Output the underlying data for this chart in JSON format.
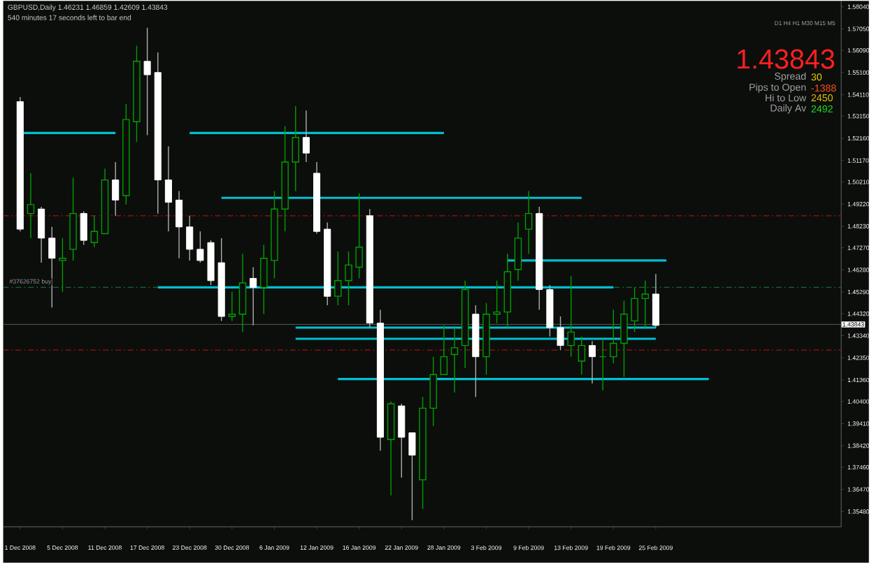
{
  "chart_data": {
    "type": "candlestick",
    "categories": [
      "1 Dec 2008",
      null,
      null,
      null,
      "5 Dec 2008",
      null,
      null,
      null,
      "11 Dec 2008",
      null,
      null,
      null,
      "17 Dec 2008",
      null,
      null,
      null,
      "23 Dec 2008",
      null,
      null,
      null,
      "30 Dec 2008",
      null,
      null,
      null,
      "6 Jan 2009",
      null,
      null,
      null,
      "12 Jan 2009",
      null,
      null,
      null,
      "16 Jan 2009",
      null,
      null,
      null,
      "22 Jan 2009",
      null,
      null,
      null,
      "28 Jan 2009",
      null,
      null,
      null,
      "3 Feb 2009",
      null,
      null,
      null,
      "9 Feb 2009",
      null,
      null,
      null,
      "13 Feb 2009",
      null,
      null,
      null,
      "19 Feb 2009",
      null,
      null,
      null,
      "25 Feb 2009",
      null,
      null,
      null,
      null,
      null,
      null,
      null,
      null,
      null,
      null,
      null,
      null,
      null,
      null,
      null,
      null,
      null
    ],
    "ohlc": [
      [
        1.538,
        1.54,
        1.48,
        1.481
      ],
      [
        1.488,
        1.506,
        1.477,
        1.492
      ],
      [
        1.49,
        1.491,
        1.466,
        1.477
      ],
      [
        1.477,
        1.482,
        1.446,
        1.468
      ],
      [
        1.467,
        1.477,
        1.453,
        1.468
      ],
      [
        1.472,
        1.504,
        1.467,
        1.488
      ],
      [
        1.488,
        1.489,
        1.474,
        1.476
      ],
      [
        1.475,
        1.487,
        1.473,
        1.48
      ],
      [
        1.479,
        1.508,
        1.479,
        1.503
      ],
      [
        1.503,
        1.511,
        1.487,
        1.494
      ],
      [
        1.496,
        1.537,
        1.492,
        1.53
      ],
      [
        1.529,
        1.563,
        1.52,
        1.556
      ],
      [
        1.556,
        1.571,
        1.523,
        1.55
      ],
      [
        1.551,
        1.56,
        1.488,
        1.503
      ],
      [
        1.503,
        1.518,
        1.48,
        1.493
      ],
      [
        1.494,
        1.498,
        1.468,
        1.482
      ],
      [
        1.482,
        1.487,
        1.467,
        1.472
      ],
      [
        1.472,
        1.48,
        1.466,
        1.467
      ],
      [
        1.475,
        1.476,
        1.456,
        1.458
      ],
      [
        1.466,
        1.477,
        1.44,
        1.442
      ],
      [
        1.442,
        1.453,
        1.44,
        1.443
      ],
      [
        1.443,
        1.47,
        1.435,
        1.457
      ],
      [
        1.459,
        1.464,
        1.438,
        1.455
      ],
      [
        1.455,
        1.474,
        1.443,
        1.468
      ],
      [
        1.467,
        1.498,
        1.459,
        1.49
      ],
      [
        1.49,
        1.527,
        1.48,
        1.511
      ],
      [
        1.511,
        1.536,
        1.498,
        1.522
      ],
      [
        1.522,
        1.534,
        1.511,
        1.515
      ],
      [
        1.506,
        1.511,
        1.479,
        1.48
      ],
      [
        1.481,
        1.484,
        1.447,
        1.451
      ],
      [
        1.451,
        1.471,
        1.447,
        1.458
      ],
      [
        1.458,
        1.471,
        1.447,
        1.465
      ],
      [
        1.464,
        1.497,
        1.459,
        1.473
      ],
      [
        1.487,
        1.49,
        1.437,
        1.439
      ],
      [
        1.439,
        1.445,
        1.382,
        1.388
      ],
      [
        1.387,
        1.404,
        1.362,
        1.403
      ],
      [
        1.402,
        1.403,
        1.37,
        1.388
      ],
      [
        1.39,
        1.39,
        1.351,
        1.38
      ],
      [
        1.369,
        1.406,
        1.356,
        1.401
      ],
      [
        1.401,
        1.424,
        1.393,
        1.416
      ],
      [
        1.416,
        1.438,
        1.416,
        1.424
      ],
      [
        1.425,
        1.437,
        1.408,
        1.428
      ],
      [
        1.429,
        1.458,
        1.419,
        1.454
      ],
      [
        1.443,
        1.447,
        1.406,
        1.424
      ],
      [
        1.424,
        1.448,
        1.416,
        1.443
      ],
      [
        1.443,
        1.458,
        1.439,
        1.444
      ],
      [
        1.444,
        1.47,
        1.437,
        1.462
      ],
      [
        1.463,
        1.484,
        1.458,
        1.477
      ],
      [
        1.481,
        1.498,
        1.47,
        1.488
      ],
      [
        1.488,
        1.491,
        1.445,
        1.454
      ],
      [
        1.454,
        1.456,
        1.433,
        1.437
      ],
      [
        1.437,
        1.442,
        1.427,
        1.429
      ],
      [
        1.429,
        1.46,
        1.424,
        1.435
      ],
      [
        1.422,
        1.433,
        1.416,
        1.429
      ],
      [
        1.429,
        1.431,
        1.412,
        1.424
      ],
      [
        1.424,
        1.432,
        1.409,
        1.424
      ],
      [
        1.424,
        1.445,
        1.421,
        1.43
      ],
      [
        1.43,
        1.449,
        1.415,
        1.443
      ],
      [
        1.44,
        1.455,
        1.435,
        1.45
      ],
      [
        1.45,
        1.458,
        1.437,
        1.452
      ],
      [
        1.452,
        1.461,
        1.437,
        1.438
      ],
      null,
      null,
      null,
      null,
      null,
      null,
      null,
      null,
      null,
      null,
      null,
      null,
      null,
      null,
      null,
      null,
      null
    ],
    "series": [
      {
        "type": "line",
        "color": "#00c0d0",
        "values": [
          1.524,
          1.524,
          1.524,
          1.524,
          1.524,
          1.524,
          1.524,
          1.524,
          1.524,
          1.524,
          null,
          null,
          null,
          null,
          null,
          null,
          null,
          null,
          null,
          null,
          null,
          null,
          null,
          null,
          null,
          null,
          null,
          null,
          null,
          null,
          null,
          null,
          null,
          null,
          null,
          null,
          null,
          null,
          null,
          null,
          null,
          null,
          null,
          null,
          null,
          null,
          null,
          null,
          null,
          null,
          null,
          null,
          null,
          null,
          null,
          null,
          null,
          null,
          null,
          null,
          null,
          null,
          null,
          null,
          null,
          null,
          null,
          null,
          null,
          null,
          null,
          null,
          null,
          null,
          null,
          null,
          null,
          null
        ]
      },
      {
        "type": "line",
        "color": "#00c0d0",
        "values": [
          null,
          null,
          null,
          null,
          null,
          null,
          null,
          null,
          null,
          null,
          null,
          null,
          null,
          null,
          null,
          null,
          1.524,
          1.524,
          1.524,
          1.524,
          1.524,
          1.524,
          1.524,
          1.524,
          1.524,
          1.524,
          1.524,
          1.524,
          1.524,
          1.524,
          1.524,
          1.524,
          1.524,
          1.524,
          1.524,
          1.524,
          1.524,
          1.524,
          1.524,
          1.524,
          1.524,
          null,
          null,
          null,
          null,
          null,
          null,
          null,
          null,
          null,
          null,
          null,
          null,
          null,
          null,
          null,
          null,
          null,
          null,
          null,
          null,
          null,
          null,
          null,
          null,
          null,
          null,
          null,
          null,
          null,
          null,
          null,
          null,
          null,
          null,
          null,
          null,
          null
        ]
      },
      {
        "type": "line",
        "color": "#00c0d0",
        "values": [
          null,
          null,
          null,
          null,
          null,
          null,
          null,
          null,
          null,
          null,
          null,
          null,
          null,
          null,
          null,
          null,
          null,
          null,
          null,
          1.495,
          1.495,
          1.495,
          1.495,
          1.495,
          1.495,
          1.495,
          1.495,
          1.495,
          1.495,
          1.495,
          1.495,
          1.495,
          1.495,
          1.495,
          1.495,
          1.495,
          1.495,
          1.495,
          1.495,
          1.495,
          1.495,
          1.495,
          1.495,
          1.495,
          1.495,
          1.495,
          1.495,
          1.495,
          1.495,
          1.495,
          1.495,
          1.495,
          1.495,
          1.495,
          null,
          null,
          null,
          null,
          null,
          null,
          null,
          null,
          null,
          null,
          null,
          null,
          null,
          null,
          null,
          null,
          null,
          null,
          null,
          null,
          null,
          null,
          null,
          null
        ]
      },
      {
        "type": "line",
        "color": "#00c0d0",
        "values": [
          null,
          null,
          null,
          null,
          null,
          null,
          null,
          null,
          null,
          null,
          null,
          null,
          null,
          null,
          null,
          null,
          null,
          null,
          null,
          null,
          null,
          null,
          null,
          null,
          null,
          null,
          null,
          null,
          null,
          null,
          null,
          null,
          null,
          null,
          null,
          null,
          null,
          null,
          null,
          null,
          null,
          null,
          null,
          null,
          null,
          null,
          1.467,
          1.467,
          1.467,
          1.467,
          1.467,
          1.467,
          1.467,
          1.467,
          1.467,
          1.467,
          1.467,
          1.467,
          1.467,
          1.467,
          1.467,
          1.467,
          null,
          null,
          null,
          null,
          null,
          null,
          null,
          null,
          null,
          null,
          null,
          null,
          null,
          null,
          null,
          null
        ]
      },
      {
        "type": "line",
        "color": "#00c0d0",
        "values": [
          null,
          null,
          null,
          null,
          null,
          null,
          null,
          null,
          null,
          null,
          null,
          null,
          null,
          1.455,
          1.455,
          1.455,
          1.455,
          1.455,
          1.455,
          1.455,
          1.455,
          1.455,
          1.455,
          1.455,
          1.455,
          1.455,
          1.455,
          1.455,
          1.455,
          1.455,
          1.455,
          1.455,
          1.455,
          1.455,
          1.455,
          1.455,
          1.455,
          1.455,
          1.455,
          1.455,
          1.455,
          1.455,
          1.455,
          1.455,
          1.455,
          1.455,
          1.455,
          1.455,
          1.455,
          1.455,
          1.455,
          1.455,
          1.455,
          1.455,
          1.455,
          1.455,
          1.455,
          null,
          null,
          null,
          null,
          null,
          null,
          null,
          null,
          null,
          null,
          null,
          null,
          null,
          null,
          null,
          null,
          null,
          null,
          null,
          null,
          null
        ]
      },
      {
        "type": "line",
        "color": "#00c0d0",
        "values": [
          null,
          null,
          null,
          null,
          null,
          null,
          null,
          null,
          null,
          null,
          null,
          null,
          null,
          null,
          null,
          null,
          null,
          null,
          null,
          null,
          null,
          null,
          null,
          null,
          null,
          null,
          1.437,
          1.437,
          1.437,
          1.437,
          1.437,
          1.437,
          1.437,
          1.437,
          1.437,
          1.437,
          1.437,
          1.437,
          1.437,
          1.437,
          1.437,
          1.437,
          1.437,
          1.437,
          1.437,
          1.437,
          1.437,
          1.437,
          1.437,
          1.437,
          1.437,
          1.437,
          1.437,
          1.437,
          1.437,
          1.437,
          1.437,
          1.437,
          1.437,
          1.437,
          1.437,
          null,
          null,
          null,
          null,
          null,
          null,
          null,
          null,
          null,
          null,
          null,
          null,
          null,
          null,
          null,
          null,
          null
        ]
      },
      {
        "type": "line",
        "color": "#00c0d0",
        "values": [
          null,
          null,
          null,
          null,
          null,
          null,
          null,
          null,
          null,
          null,
          null,
          null,
          null,
          null,
          null,
          null,
          null,
          null,
          null,
          null,
          null,
          null,
          null,
          null,
          null,
          null,
          1.432,
          1.432,
          1.432,
          1.432,
          1.432,
          1.432,
          1.432,
          1.432,
          1.432,
          1.432,
          1.432,
          1.432,
          1.432,
          1.432,
          1.432,
          1.432,
          1.432,
          1.432,
          1.432,
          1.432,
          1.432,
          1.432,
          1.432,
          1.432,
          1.432,
          1.432,
          1.432,
          1.432,
          1.432,
          1.432,
          1.432,
          1.432,
          1.432,
          1.432,
          1.432,
          null,
          null,
          null,
          null,
          null,
          null,
          null,
          null,
          null,
          null,
          null,
          null,
          null,
          null,
          null,
          null,
          null
        ]
      },
      {
        "type": "line",
        "color": "#00c0d0",
        "values": [
          null,
          null,
          null,
          null,
          null,
          null,
          null,
          null,
          null,
          null,
          null,
          null,
          null,
          null,
          null,
          null,
          null,
          null,
          null,
          null,
          null,
          null,
          null,
          null,
          null,
          null,
          null,
          null,
          null,
          null,
          1.414,
          1.414,
          1.414,
          1.414,
          1.414,
          1.414,
          1.414,
          1.414,
          1.414,
          1.414,
          1.414,
          1.414,
          1.414,
          1.414,
          1.414,
          1.414,
          1.414,
          1.414,
          1.414,
          1.414,
          1.414,
          1.414,
          1.414,
          1.414,
          1.414,
          1.414,
          1.414,
          1.414,
          1.414,
          1.414,
          1.414,
          1.414,
          1.414,
          1.414,
          1.414,
          1.414,
          null,
          null,
          null,
          null,
          null,
          null,
          null,
          null,
          null,
          null,
          null,
          null
        ]
      }
    ],
    "ylim": [
      1.348,
      1.583
    ],
    "yticks": [
      {
        "value": 1.5804,
        "label": "1.58040"
      },
      {
        "value": 1.5705,
        "label": "1.57050"
      },
      {
        "value": 1.5609,
        "label": "1.56090"
      },
      {
        "value": 1.551,
        "label": "1.55100"
      },
      {
        "value": 1.5411,
        "label": "1.54110"
      },
      {
        "value": 1.5315,
        "label": "1.53150"
      },
      {
        "value": 1.5216,
        "label": "1.52160"
      },
      {
        "value": 1.5117,
        "label": "1.51170"
      },
      {
        "value": 1.5021,
        "label": "1.50210"
      },
      {
        "value": 1.4922,
        "label": "1.49220"
      },
      {
        "value": 1.4823,
        "label": "1.48230"
      },
      {
        "value": 1.4727,
        "label": "1.47270"
      },
      {
        "value": 1.4628,
        "label": "1.46280"
      },
      {
        "value": 1.4529,
        "label": "1.45290"
      },
      {
        "value": 1.4432,
        "label": "1.44320"
      },
      {
        "value": 1.4334,
        "label": "1.43340"
      },
      {
        "value": 1.4235,
        "label": "1.42350"
      },
      {
        "value": 1.4136,
        "label": "1.41360"
      },
      {
        "value": 1.404,
        "label": "1.40400"
      },
      {
        "value": 1.3941,
        "label": "1.39410"
      },
      {
        "value": 1.3842,
        "label": "1.38420"
      },
      {
        "value": 1.3746,
        "label": "1.37460"
      },
      {
        "value": 1.3647,
        "label": "1.36470"
      },
      {
        "value": 1.3548,
        "label": "1.35480"
      }
    ],
    "ref_lines": [
      {
        "axis": "y",
        "value": 1.487,
        "color": "#a01010",
        "line_style": "dashed"
      },
      {
        "axis": "y",
        "value": 1.427,
        "color": "#a01010",
        "line_style": "dashed"
      },
      {
        "axis": "y",
        "value": 1.455,
        "color": "#106a30",
        "line_style": "dashed",
        "label": "#37626752 buy"
      },
      {
        "axis": "y",
        "value": 1.43843,
        "color": "#505050",
        "line_style": "solid",
        "label": "1.43843"
      }
    ],
    "annotations": [
      "GBPUSD,Daily  1.46231 1.46859 1.42609 1.43843",
      "540 minutes 17 seconds left to bar end",
      "D1 H4 H1 M30 M15 M5",
      "1.43843",
      "Spread",
      "30",
      "Pips to Open",
      "-1388",
      "Hi to Low",
      "2450",
      "Daily Av",
      "2492"
    ]
  }
}
